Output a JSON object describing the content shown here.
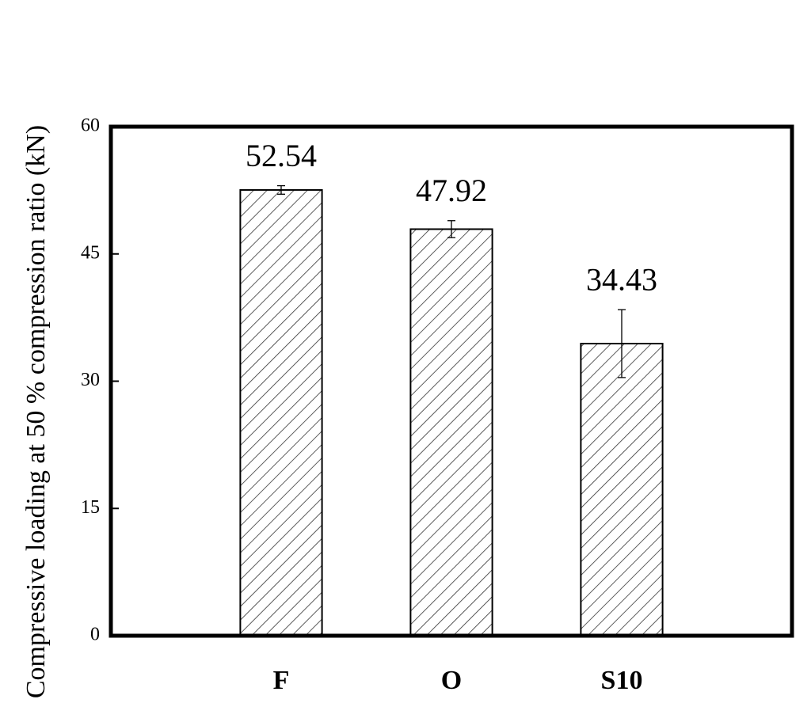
{
  "chart_data": {
    "type": "bar",
    "y_label": "Compressive loading at 50 % compression ratio (kN)",
    "categories": [
      "F",
      "O",
      "S10"
    ],
    "values": [
      52.54,
      47.92,
      34.43
    ],
    "errors": [
      0.5,
      1.0,
      4.0
    ],
    "color": "#ffffff",
    "hatch_color": "#333333",
    "ylim": [
      0,
      60
    ],
    "yticks": [
      0,
      15,
      30,
      45,
      60
    ],
    "grid": false
  }
}
